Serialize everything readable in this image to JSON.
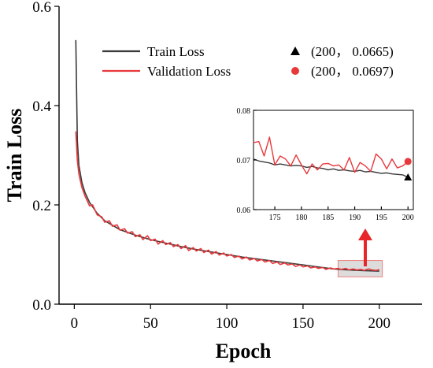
{
  "colors": {
    "train": "#3a3a3a",
    "validation": "#e8383b",
    "highlight_fill": "#dcdcdc",
    "highlight_stroke": "#f08080",
    "arrow": "#e8262a"
  },
  "chart_data": [
    {
      "type": "line",
      "xlabel": "Epoch",
      "ylabel": "Train Loss",
      "xlim": [
        -10,
        228
      ],
      "ylim": [
        0.0,
        0.6
      ],
      "xticks": [
        "0",
        "50",
        "100",
        "150",
        "200"
      ],
      "yticks": [
        "0.0",
        "0.2",
        "0.4",
        "0.6"
      ],
      "legend_placement": "top-center",
      "grid": false,
      "series": [
        {
          "name": "Train Loss",
          "x": [
            1,
            2,
            3,
            5,
            7,
            10,
            15,
            20,
            30,
            40,
            50,
            60,
            70,
            80,
            90,
            100,
            110,
            120,
            130,
            140,
            150,
            160,
            170,
            180,
            190,
            200
          ],
          "values": [
            0.532,
            0.33,
            0.28,
            0.245,
            0.225,
            0.205,
            0.183,
            0.168,
            0.15,
            0.139,
            0.13,
            0.123,
            0.116,
            0.11,
            0.105,
            0.1,
            0.095,
            0.091,
            0.087,
            0.083,
            0.079,
            0.075,
            0.071,
            0.069,
            0.0675,
            0.0665
          ]
        },
        {
          "name": "Validation Loss",
          "x": [
            1,
            2,
            3,
            5,
            7,
            10,
            12,
            15,
            18,
            20,
            23,
            25,
            28,
            30,
            33,
            35,
            38,
            40,
            43,
            45,
            48,
            50,
            53,
            55,
            58,
            60,
            63,
            65,
            68,
            70,
            73,
            75,
            78,
            80,
            83,
            85,
            88,
            90,
            93,
            95,
            98,
            100,
            103,
            105,
            108,
            110,
            113,
            115,
            118,
            120,
            123,
            125,
            128,
            130,
            133,
            135,
            138,
            140,
            143,
            145,
            148,
            150,
            153,
            155,
            158,
            160,
            163,
            165,
            168,
            170,
            173,
            175,
            178,
            180,
            183,
            185,
            188,
            190,
            193,
            195,
            198,
            200
          ],
          "values": [
            0.348,
            0.29,
            0.262,
            0.235,
            0.218,
            0.198,
            0.2,
            0.18,
            0.176,
            0.165,
            0.168,
            0.157,
            0.16,
            0.149,
            0.152,
            0.143,
            0.146,
            0.136,
            0.14,
            0.13,
            0.138,
            0.128,
            0.131,
            0.121,
            0.128,
            0.12,
            0.124,
            0.116,
            0.12,
            0.112,
            0.118,
            0.108,
            0.114,
            0.107,
            0.112,
            0.104,
            0.109,
            0.101,
            0.106,
            0.099,
            0.103,
            0.097,
            0.1,
            0.094,
            0.097,
            0.091,
            0.095,
            0.089,
            0.092,
            0.087,
            0.09,
            0.085,
            0.088,
            0.082,
            0.085,
            0.08,
            0.083,
            0.079,
            0.081,
            0.076,
            0.079,
            0.075,
            0.077,
            0.073,
            0.075,
            0.072,
            0.074,
            0.07,
            0.073,
            0.071,
            0.072,
            0.07,
            0.072,
            0.069,
            0.071,
            0.069,
            0.07,
            0.068,
            0.071,
            0.069,
            0.068,
            0.0697
          ]
        }
      ],
      "annotations": [
        {
          "marker": "triangle",
          "series": "Train Loss",
          "text": "(200， 0.0665)"
        },
        {
          "marker": "circle",
          "series": "Validation Loss",
          "text": "(200， 0.0697)"
        }
      ],
      "highlight_region": {
        "x": [
          173,
          202
        ],
        "y": [
          0.055,
          0.088
        ]
      }
    },
    {
      "type": "line",
      "xlim": [
        171,
        201
      ],
      "ylim": [
        0.06,
        0.08
      ],
      "xticks": [
        "175",
        "180",
        "185",
        "190",
        "195",
        "200"
      ],
      "yticks": [
        "0.06",
        "0.07",
        "0.08"
      ],
      "grid": false,
      "series": [
        {
          "name": "Train Loss",
          "x": [
            171,
            172,
            173,
            174,
            175,
            176,
            177,
            178,
            179,
            180,
            181,
            182,
            183,
            184,
            185,
            186,
            187,
            188,
            189,
            190,
            191,
            192,
            193,
            194,
            195,
            196,
            197,
            198,
            199,
            200
          ],
          "values": [
            0.0702,
            0.0698,
            0.0696,
            0.0694,
            0.069,
            0.0692,
            0.069,
            0.0688,
            0.0689,
            0.0688,
            0.0685,
            0.0687,
            0.0684,
            0.0683,
            0.068,
            0.0682,
            0.0679,
            0.068,
            0.0678,
            0.0677,
            0.0679,
            0.0676,
            0.0677,
            0.0675,
            0.0673,
            0.0674,
            0.0672,
            0.0671,
            0.067,
            0.0665
          ]
        },
        {
          "name": "Validation Loss",
          "x": [
            171,
            172,
            173,
            174,
            175,
            176,
            177,
            178,
            179,
            180,
            181,
            182,
            183,
            184,
            185,
            186,
            187,
            188,
            189,
            190,
            191,
            192,
            193,
            194,
            195,
            196,
            197,
            198,
            199,
            200
          ],
          "values": [
            0.0735,
            0.0737,
            0.0708,
            0.0746,
            0.069,
            0.0708,
            0.0702,
            0.0688,
            0.071,
            0.069,
            0.0672,
            0.0692,
            0.068,
            0.0692,
            0.0693,
            0.0688,
            0.069,
            0.068,
            0.0705,
            0.0675,
            0.0695,
            0.0688,
            0.0677,
            0.0712,
            0.0702,
            0.0682,
            0.0702,
            0.0684,
            0.0688,
            0.0697
          ]
        }
      ]
    }
  ]
}
